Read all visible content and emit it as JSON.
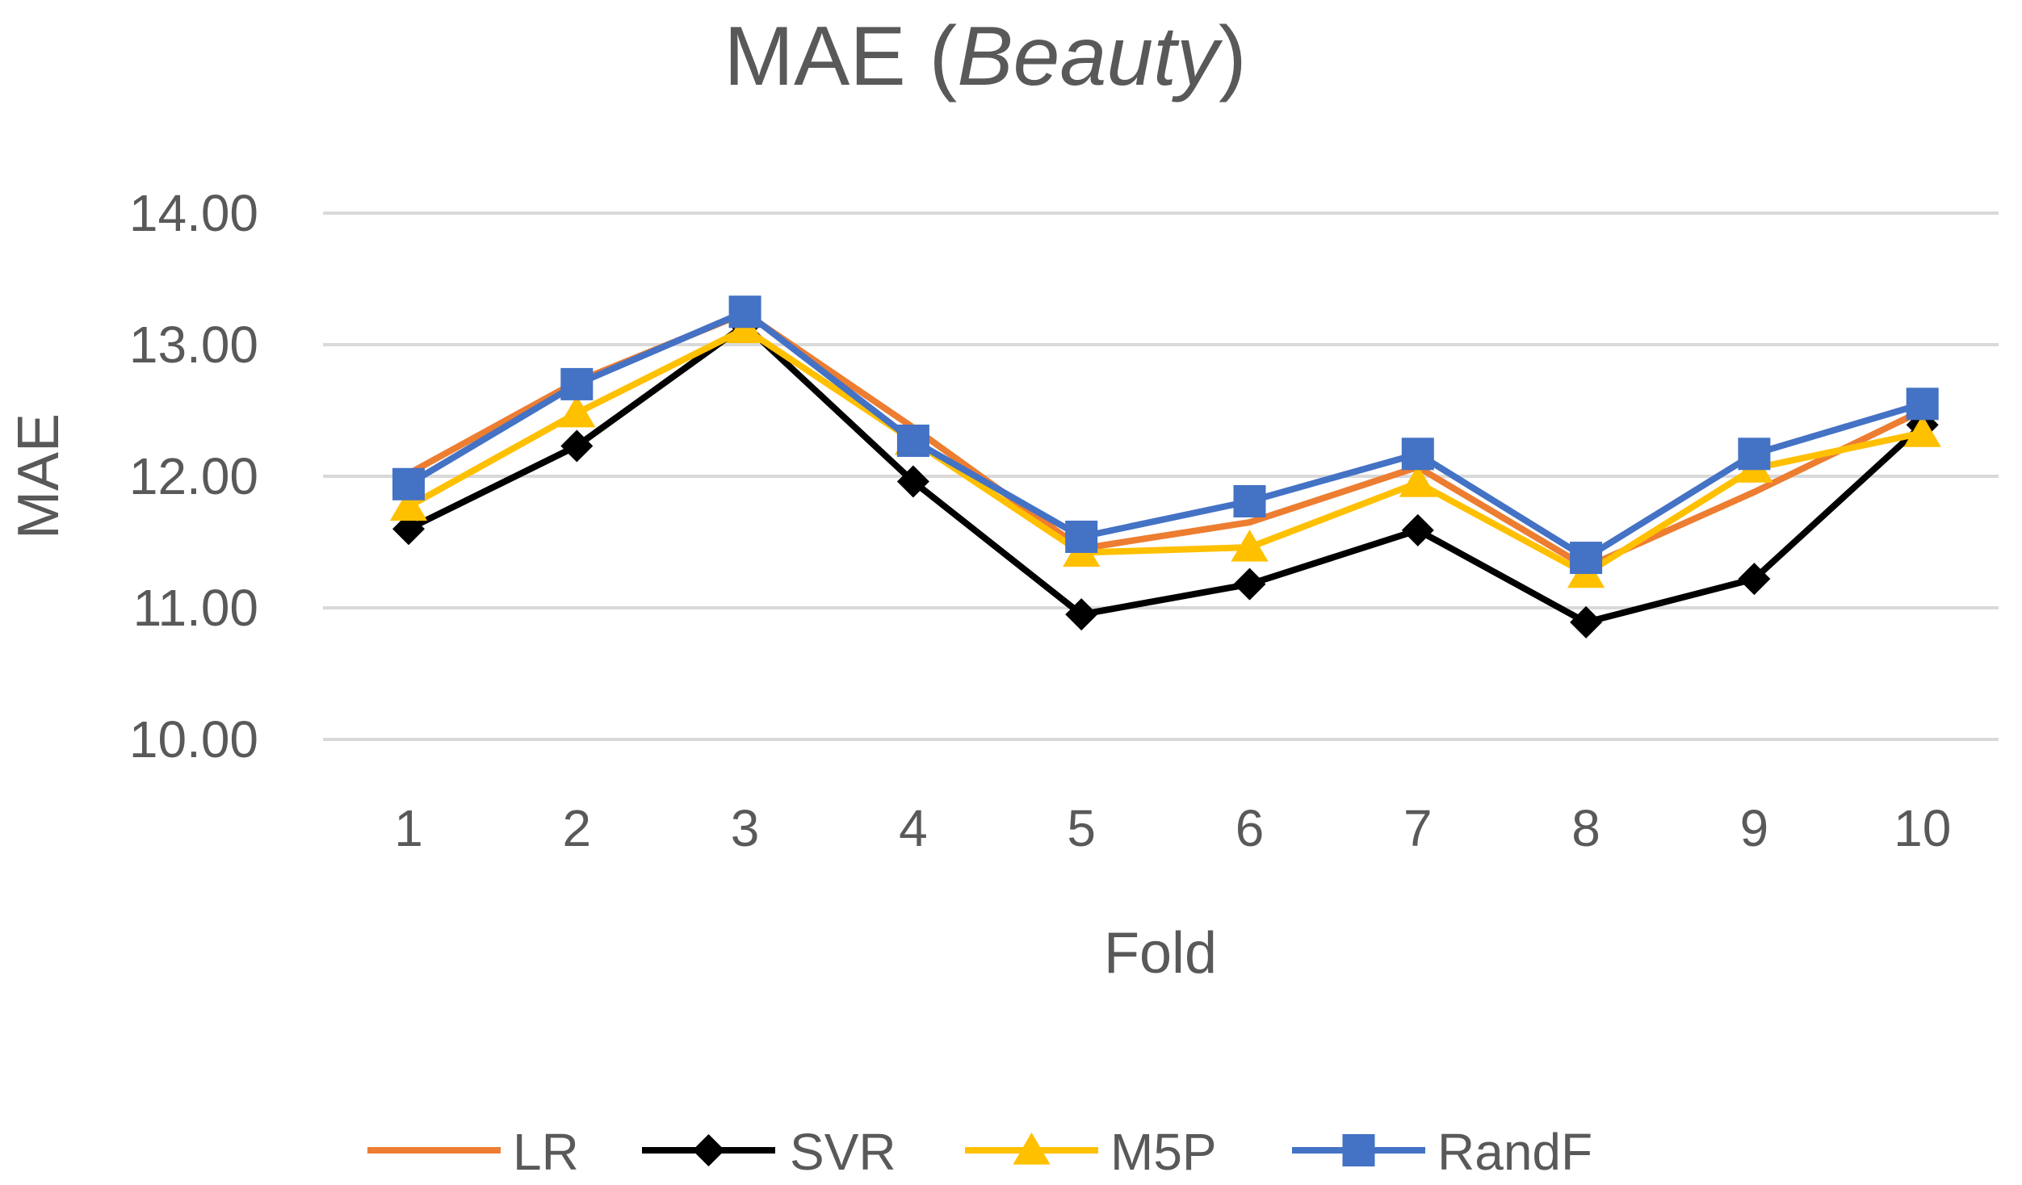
{
  "chart_data": {
    "type": "line",
    "title": "MAE",
    "title_suffix": "Beauty",
    "xlabel": "Fold",
    "ylabel": "MAE",
    "ylim": [
      10,
      14
    ],
    "yticks": [
      "10.00",
      "11.00",
      "12.00",
      "13.00",
      "14.00"
    ],
    "categories": [
      "1",
      "2",
      "3",
      "4",
      "5",
      "6",
      "7",
      "8",
      "9",
      "10"
    ],
    "grid": true,
    "legend": "bottom",
    "series": [
      {
        "name": "LR",
        "color": "#ED7D31",
        "marker": "none",
        "values": [
          12.02,
          12.72,
          13.24,
          12.37,
          11.45,
          11.65,
          12.07,
          11.31,
          11.88,
          12.5
        ]
      },
      {
        "name": "SVR",
        "color": "#000000",
        "marker": "diamond",
        "values": [
          11.6,
          12.23,
          13.15,
          11.96,
          10.95,
          11.18,
          11.59,
          10.89,
          11.22,
          12.39
        ]
      },
      {
        "name": "M5P",
        "color": "#FFC000",
        "marker": "triangle",
        "values": [
          11.77,
          12.48,
          13.12,
          12.27,
          11.42,
          11.46,
          11.95,
          11.26,
          12.06,
          12.33
        ]
      },
      {
        "name": "RandF",
        "color": "#4472C4",
        "marker": "square",
        "values": [
          11.94,
          12.7,
          13.25,
          12.27,
          11.54,
          11.81,
          12.17,
          11.38,
          12.17,
          12.55
        ]
      }
    ]
  }
}
